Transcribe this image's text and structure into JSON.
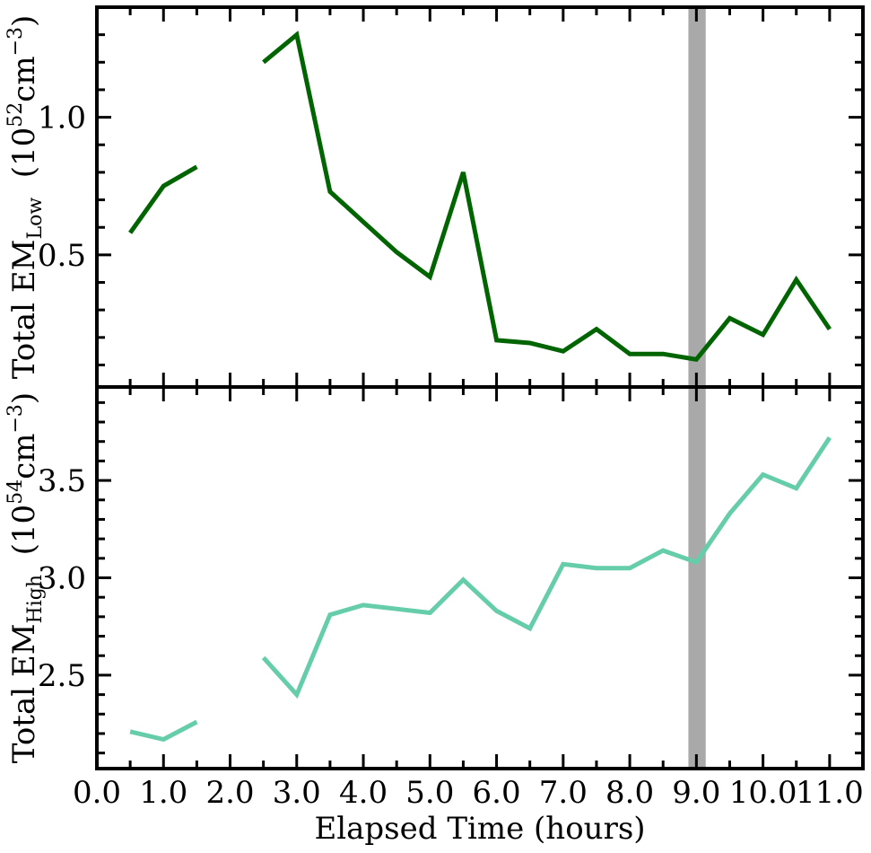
{
  "chart_data": [
    {
      "type": "line",
      "panel": "top",
      "ylabel": {
        "prefix": "Total EM",
        "subscript": "Low",
        "unit_open": "(10",
        "unit_exp": "52",
        "unit_mid": "cm",
        "unit_exp2": "−3",
        "unit_close": ")"
      },
      "xlim": [
        0,
        11.5
      ],
      "ylim": [
        0.02,
        1.4
      ],
      "yticks": [
        0.5,
        1.0
      ],
      "yticklabels": [
        "0.5",
        "1.0"
      ],
      "grid": false,
      "series": [
        {
          "color": "#006400",
          "segments": [
            [
              [
                0.5,
                0.58
              ],
              [
                1.0,
                0.75
              ],
              [
                1.5,
                0.82
              ]
            ],
            [
              [
                2.5,
                1.2
              ],
              [
                3.0,
                1.3
              ],
              [
                3.5,
                0.73
              ],
              [
                4.0,
                0.62
              ],
              [
                4.5,
                0.51
              ],
              [
                5.0,
                0.42
              ],
              [
                5.5,
                0.8
              ],
              [
                6.0,
                0.19
              ],
              [
                6.5,
                0.18
              ],
              [
                7.0,
                0.15
              ],
              [
                7.5,
                0.23
              ],
              [
                8.0,
                0.14
              ],
              [
                8.5,
                0.14
              ],
              [
                9.0,
                0.12
              ],
              [
                9.5,
                0.27
              ],
              [
                10.0,
                0.21
              ],
              [
                10.5,
                0.41
              ],
              [
                11.0,
                0.23
              ]
            ]
          ]
        }
      ]
    },
    {
      "type": "line",
      "panel": "bottom",
      "xlabel": "Elapsed Time (hours)",
      "ylabel": {
        "prefix": "Total EM",
        "subscript": "High",
        "unit_open": "(10",
        "unit_exp": "54",
        "unit_mid": "cm",
        "unit_exp2": "−3",
        "unit_close": ")"
      },
      "xlim": [
        0,
        11.5
      ],
      "ylim": [
        2.02,
        3.98
      ],
      "xticks": [
        0,
        1,
        2,
        3,
        4,
        5,
        6,
        7,
        8,
        9,
        10,
        11
      ],
      "xticklabels": [
        "0.0",
        "1.0",
        "2.0",
        "3.0",
        "4.0",
        "5.0",
        "6.0",
        "7.0",
        "8.0",
        "9.0",
        "10.0",
        "11.0"
      ],
      "yticks": [
        2.5,
        3.0,
        3.5
      ],
      "yticklabels": [
        "2.5",
        "3.0",
        "3.5"
      ],
      "grid": false,
      "series": [
        {
          "color": "#66CDAA",
          "segments": [
            [
              [
                0.5,
                2.21
              ],
              [
                1.0,
                2.17
              ],
              [
                1.5,
                2.26
              ]
            ],
            [
              [
                2.5,
                2.59
              ],
              [
                3.0,
                2.4
              ],
              [
                3.5,
                2.81
              ],
              [
                4.0,
                2.86
              ],
              [
                4.5,
                2.84
              ],
              [
                5.0,
                2.82
              ],
              [
                5.5,
                2.99
              ],
              [
                6.0,
                2.83
              ],
              [
                6.5,
                2.74
              ],
              [
                7.0,
                3.07
              ],
              [
                7.5,
                3.05
              ],
              [
                8.0,
                3.05
              ],
              [
                8.5,
                3.14
              ],
              [
                9.0,
                3.08
              ],
              [
                9.5,
                3.33
              ],
              [
                10.0,
                3.53
              ],
              [
                10.5,
                3.46
              ],
              [
                11.0,
                3.72
              ]
            ]
          ]
        }
      ]
    }
  ],
  "shaded_band": {
    "x0": 8.88,
    "x1": 9.14,
    "color": "#a9a9a9"
  }
}
